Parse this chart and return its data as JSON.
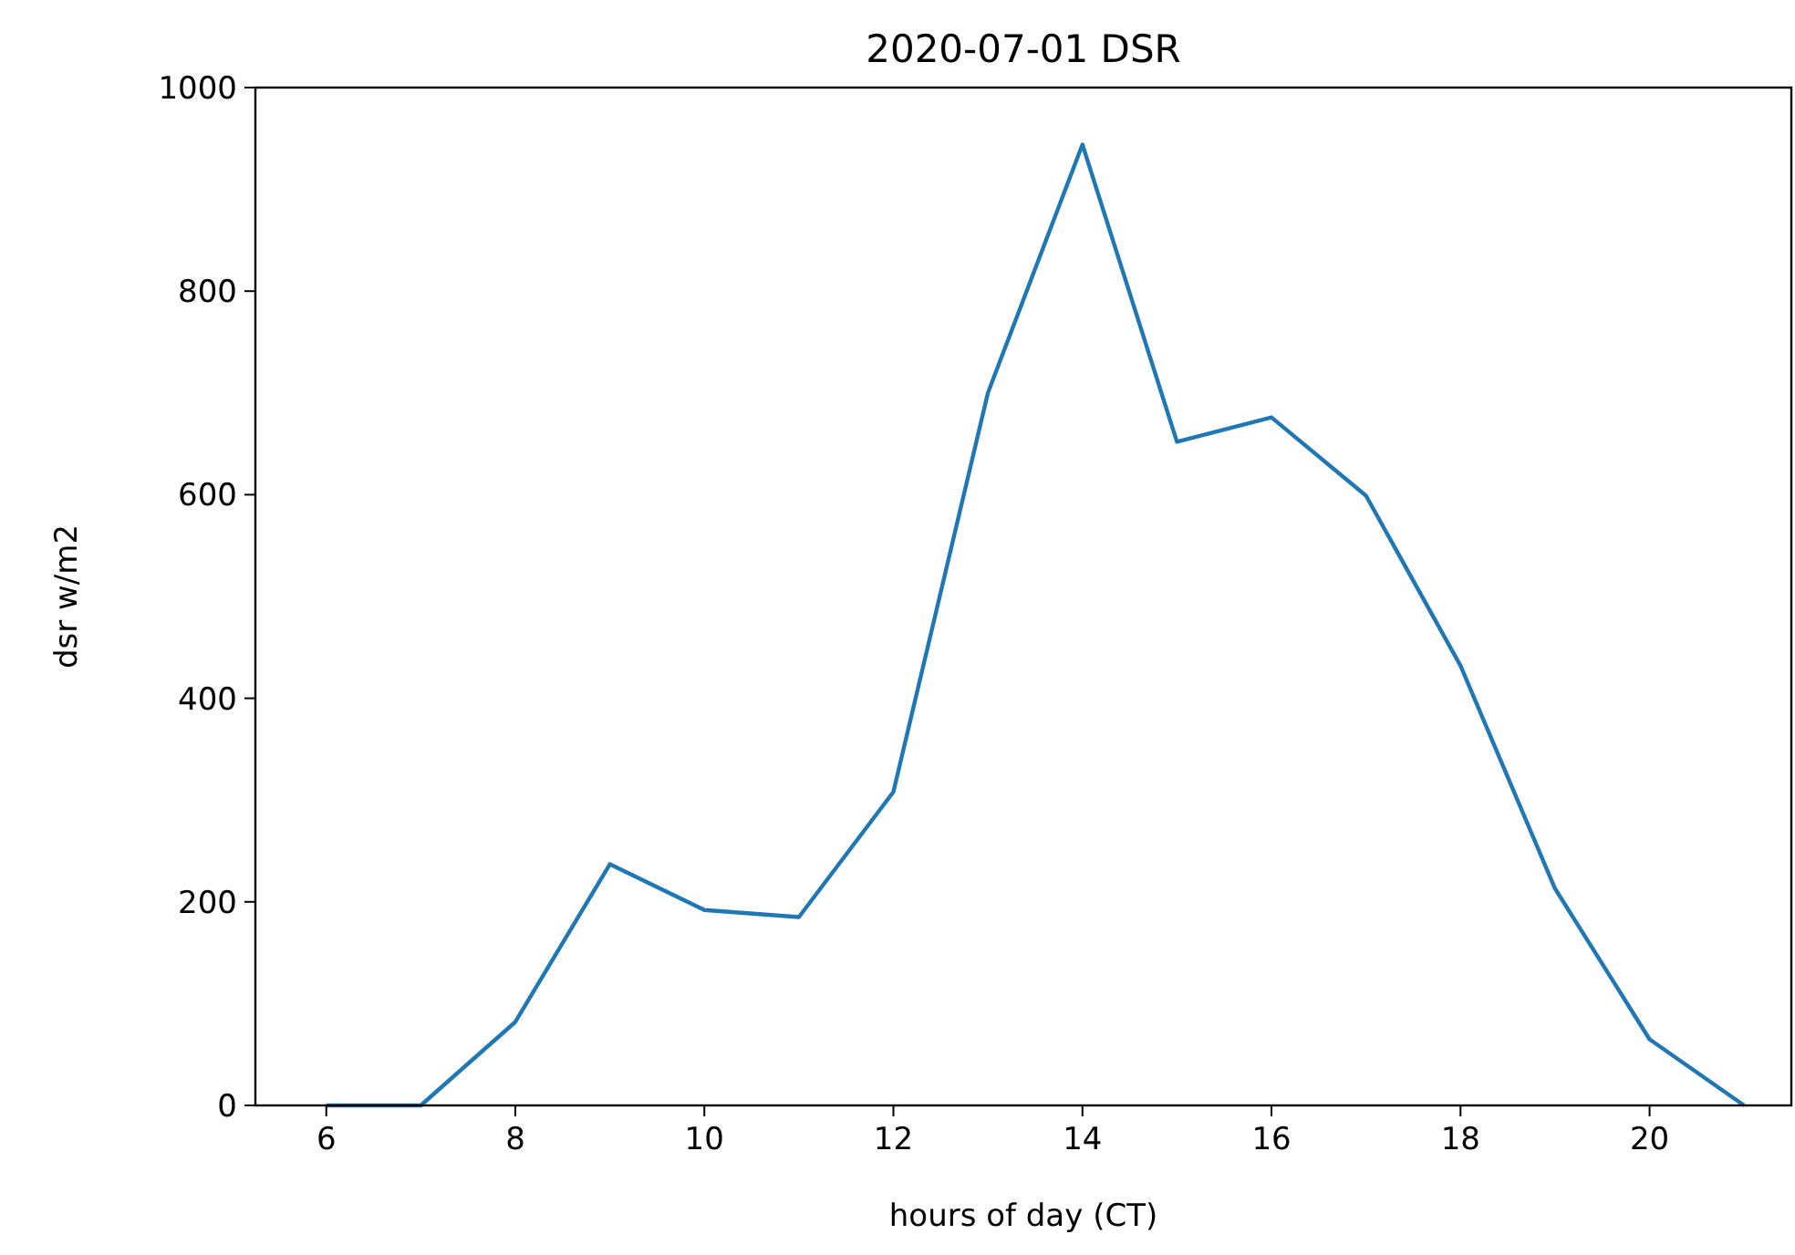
{
  "chart_data": {
    "type": "line",
    "title": "2020-07-01 DSR",
    "xlabel": "hours of day (CT)",
    "ylabel": "dsr w/m2",
    "x": [
      6,
      7,
      8,
      9,
      10,
      11,
      12,
      13,
      14,
      15,
      16,
      17,
      18,
      19,
      20,
      21
    ],
    "series": [
      {
        "color": "#1f77b4",
        "values": [
          0,
          0,
          82,
          237,
          192,
          185,
          308,
          700,
          944,
          652,
          676,
          599,
          432,
          213,
          65,
          0
        ]
      }
    ],
    "xlim": [
      5.25,
      21.5
    ],
    "xticks": [
      6,
      8,
      10,
      12,
      14,
      16,
      18,
      20
    ],
    "ylim": [
      0,
      1000
    ],
    "yticks": [
      0,
      200,
      400,
      600,
      800,
      1000
    ],
    "marker": "none",
    "line_style": "solid"
  }
}
